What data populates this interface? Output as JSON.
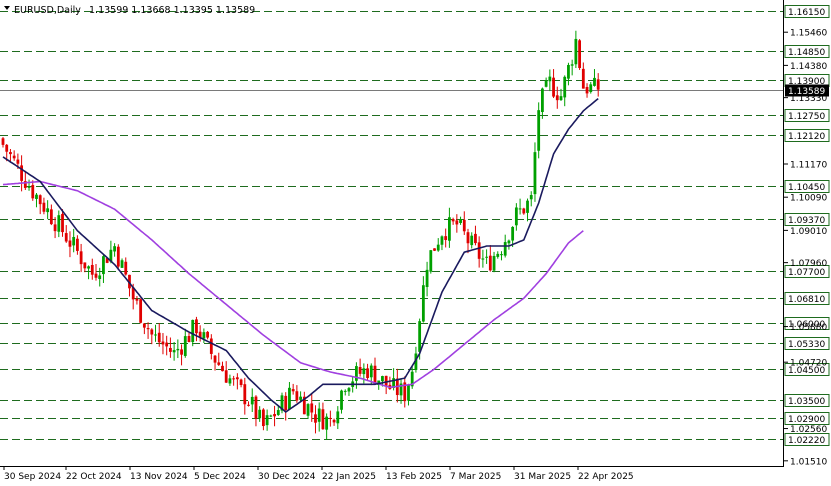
{
  "header": {
    "symbol": "EURUSD,Daily",
    "ohlc": "1.13599 1.13668 1.13395 1.13589"
  },
  "chart_data": {
    "type": "candlestick",
    "ylim": [
      1.0125,
      1.165
    ],
    "price_ticks": [
      "1.15460",
      "1.14380",
      "1.13330",
      "1.11170",
      "1.10090",
      "1.09010",
      "1.07960",
      "1.05880",
      "1.04720",
      "1.02560",
      "1.01510"
    ],
    "levels": [
      "1.16150",
      "1.14850",
      "1.13900",
      "1.12750",
      "1.12120",
      "1.10450",
      "1.09370",
      "1.07700",
      "1.06810",
      "1.06000",
      "1.05330",
      "1.04500",
      "1.03500",
      "1.02900",
      "1.02220"
    ],
    "current_price": "1.13589",
    "date_labels": [
      "30 Sep 2024",
      "22 Oct 2024",
      "13 Nov 2024",
      "5 Dec 2024",
      "30 Dec 2024",
      "22 Jan 2025",
      "13 Feb 2025",
      "7 Mar 2025",
      "31 Mar 2025",
      "22 Apr 2025"
    ],
    "anchors": [
      [
        0,
        1.118
      ],
      [
        8,
        1.103
      ],
      [
        16,
        1.09
      ],
      [
        24,
        1.076
      ],
      [
        30,
        1.085
      ],
      [
        35,
        1.068
      ],
      [
        40,
        1.056
      ],
      [
        46,
        1.05
      ],
      [
        52,
        1.059
      ],
      [
        56,
        1.05
      ],
      [
        62,
        1.04
      ],
      [
        66,
        1.035
      ],
      [
        70,
        1.026
      ],
      [
        74,
        1.032
      ],
      [
        78,
        1.038
      ],
      [
        84,
        1.03
      ],
      [
        88,
        1.028
      ],
      [
        92,
        1.041
      ],
      [
        98,
        1.045
      ],
      [
        104,
        1.039
      ],
      [
        108,
        1.037
      ],
      [
        110,
        1.045
      ],
      [
        114,
        1.08
      ],
      [
        118,
        1.09
      ],
      [
        122,
        1.092
      ],
      [
        126,
        1.085
      ],
      [
        130,
        1.079
      ],
      [
        134,
        1.085
      ],
      [
        138,
        1.095
      ],
      [
        142,
        1.1
      ],
      [
        144,
        1.13
      ],
      [
        147,
        1.138
      ],
      [
        150,
        1.134
      ],
      [
        153,
        1.147
      ],
      [
        154,
        1.152
      ],
      [
        156,
        1.137
      ],
      [
        160,
        1.1359
      ]
    ],
    "ma_fast": [
      [
        0,
        1.114
      ],
      [
        10,
        1.106
      ],
      [
        20,
        1.09
      ],
      [
        30,
        1.079
      ],
      [
        40,
        1.064
      ],
      [
        50,
        1.057
      ],
      [
        60,
        1.051
      ],
      [
        66,
        1.042
      ],
      [
        72,
        1.035
      ],
      [
        76,
        1.031
      ],
      [
        82,
        1.036
      ],
      [
        86,
        1.04
      ],
      [
        92,
        1.04
      ],
      [
        100,
        1.04
      ],
      [
        108,
        1.042
      ],
      [
        112,
        1.05
      ],
      [
        118,
        1.07
      ],
      [
        124,
        1.083
      ],
      [
        130,
        1.085
      ],
      [
        136,
        1.085
      ],
      [
        140,
        1.087
      ],
      [
        144,
        1.099
      ],
      [
        148,
        1.115
      ],
      [
        152,
        1.123
      ],
      [
        156,
        1.129
      ],
      [
        160,
        1.133
      ]
    ],
    "ma_slow": [
      [
        0,
        1.105
      ],
      [
        10,
        1.106
      ],
      [
        20,
        1.103
      ],
      [
        30,
        1.097
      ],
      [
        40,
        1.087
      ],
      [
        50,
        1.076
      ],
      [
        60,
        1.066
      ],
      [
        70,
        1.056
      ],
      [
        80,
        1.047
      ],
      [
        88,
        1.044
      ],
      [
        96,
        1.042
      ],
      [
        104,
        1.039
      ],
      [
        110,
        1.04
      ],
      [
        116,
        1.045
      ],
      [
        124,
        1.053
      ],
      [
        132,
        1.061
      ],
      [
        140,
        1.068
      ],
      [
        146,
        1.076
      ],
      [
        152,
        1.086
      ],
      [
        156,
        1.09
      ]
    ],
    "colors": {
      "up": "#00a000",
      "down": "#e00000",
      "ma_fast": "#1a1a5e",
      "ma_slow": "#a040e0",
      "level_line": "#1e6b1e",
      "current_bg": "#000000"
    }
  }
}
